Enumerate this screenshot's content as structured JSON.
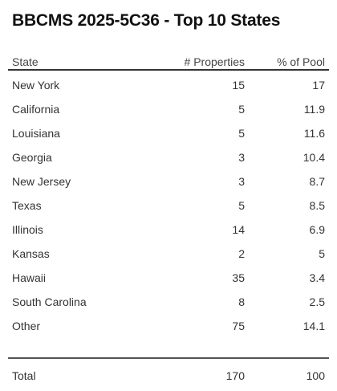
{
  "title": "BBCMS 2025-5C36 - Top 10 States",
  "chart_data": {
    "type": "table",
    "title": "BBCMS 2025-5C36 - Top 10 States",
    "columns": [
      "State",
      "# Properties",
      "% of Pool"
    ],
    "rows": [
      {
        "state": "New York",
        "properties": "15",
        "pool": "17"
      },
      {
        "state": "California",
        "properties": "5",
        "pool": "11.9"
      },
      {
        "state": "Louisiana",
        "properties": "5",
        "pool": "11.6"
      },
      {
        "state": "Georgia",
        "properties": "3",
        "pool": "10.4"
      },
      {
        "state": "New Jersey",
        "properties": "3",
        "pool": "8.7"
      },
      {
        "state": "Texas",
        "properties": "5",
        "pool": "8.5"
      },
      {
        "state": "Illinois",
        "properties": "14",
        "pool": "6.9"
      },
      {
        "state": "Kansas",
        "properties": "2",
        "pool": "5"
      },
      {
        "state": "Hawaii",
        "properties": "35",
        "pool": "3.4"
      },
      {
        "state": "South Carolina",
        "properties": "8",
        "pool": "2.5"
      },
      {
        "state": "Other",
        "properties": "75",
        "pool": "14.1"
      }
    ],
    "total": {
      "label": "Total",
      "properties": "170",
      "pool": "100"
    }
  }
}
